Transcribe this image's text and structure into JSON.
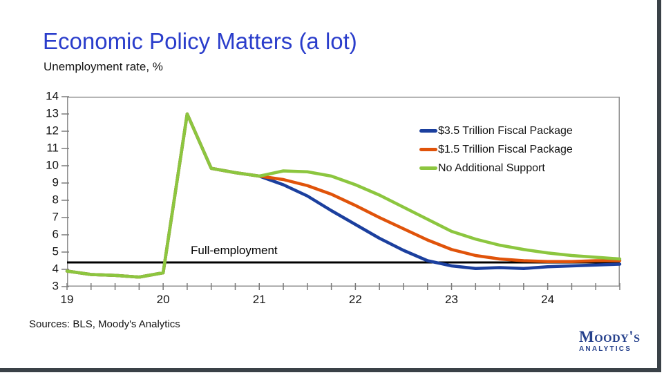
{
  "slide": {
    "title": "Economic Policy Matters (a lot)",
    "subtitle": "Unemployment rate, %",
    "sources": "Sources: BLS, Moody's Analytics",
    "logo": {
      "brand": "Moody's",
      "sub": "ANALYTICS"
    }
  },
  "colors": {
    "title": "#2a3dcb",
    "axis_frame": "#8f8f8f",
    "tick": "#7a7a7a",
    "reference": "#000000",
    "logo": "#26418c",
    "edge": "#3a4147"
  },
  "chart_data": {
    "type": "line",
    "title": "Economic Policy Matters (a lot)",
    "ylabel": "Unemployment rate, %",
    "xlabel": "",
    "xlim": [
      19,
      24.75
    ],
    "ylim": [
      3,
      14
    ],
    "y_ticks": [
      3,
      4,
      5,
      6,
      7,
      8,
      9,
      10,
      11,
      12,
      13,
      14
    ],
    "x_ticks_labeled": [
      19,
      20,
      21,
      22,
      23,
      24
    ],
    "x_minor_step": 0.25,
    "grid": false,
    "legend_position": "top-right-inside",
    "x": [
      19,
      19.25,
      19.5,
      19.75,
      20,
      20.25,
      20.5,
      20.75,
      21,
      21.25,
      21.5,
      21.75,
      22,
      22.25,
      22.5,
      22.75,
      23,
      23.25,
      23.5,
      23.75,
      24,
      24.25,
      24.5,
      24.75
    ],
    "series": [
      {
        "name": "$3.5 Trillion Fiscal Package",
        "color": "#1b3f9e",
        "values": [
          3.9,
          3.7,
          3.65,
          3.55,
          3.8,
          13.0,
          9.85,
          9.6,
          9.4,
          8.9,
          8.25,
          7.4,
          6.6,
          5.8,
          5.1,
          4.5,
          4.2,
          4.05,
          4.1,
          4.05,
          4.15,
          4.2,
          4.25,
          4.3
        ]
      },
      {
        "name": "$1.5 Trillion Fiscal Package",
        "color": "#e0530a",
        "values": [
          3.9,
          3.7,
          3.65,
          3.55,
          3.8,
          13.0,
          9.85,
          9.6,
          9.4,
          9.2,
          8.85,
          8.35,
          7.7,
          7.0,
          6.35,
          5.7,
          5.15,
          4.8,
          4.6,
          4.5,
          4.45,
          4.45,
          4.5,
          4.5
        ]
      },
      {
        "name": "No Additional Support",
        "color": "#8cc63f",
        "values": [
          3.9,
          3.7,
          3.65,
          3.55,
          3.8,
          13.0,
          9.85,
          9.6,
          9.4,
          9.7,
          9.65,
          9.4,
          8.9,
          8.3,
          7.6,
          6.9,
          6.2,
          5.75,
          5.4,
          5.15,
          4.95,
          4.8,
          4.7,
          4.6
        ]
      }
    ],
    "reference_line": {
      "label": "Full-employment",
      "value": 4.4
    }
  }
}
